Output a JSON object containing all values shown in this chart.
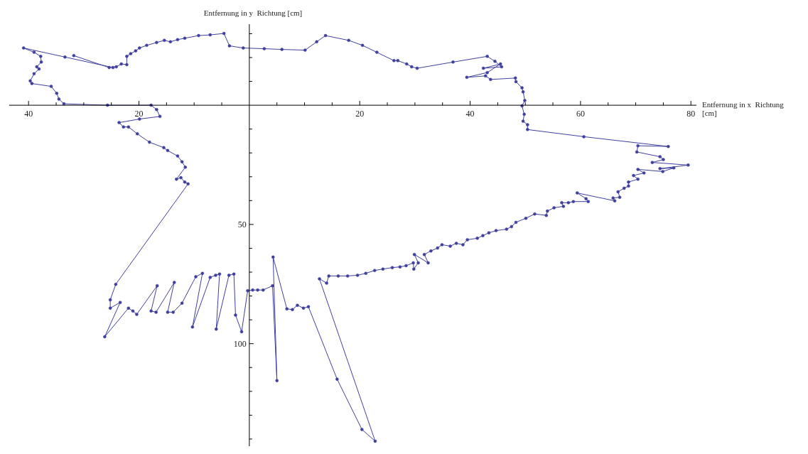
{
  "chart_data": {
    "type": "line",
    "xlabel": "Entfernung in x  Richtung [cm]",
    "ylabel": "Entfernung in y  Richtung [cm]",
    "color": "#3f3f9f",
    "marker": "circle",
    "line_style": "solid",
    "x": [
      -31.8,
      -25.4,
      -24.1,
      -23.2,
      -22.2,
      -22.2,
      -21.5,
      -20.6,
      -19.9,
      -18.6,
      -16.8,
      -15.4,
      -14.3,
      -13.0,
      -11.7,
      -9.2,
      -7.1,
      -4.6,
      -3.6,
      -1.1,
      2.7,
      5.9,
      10.1,
      12.2,
      13.8,
      18.0,
      20.5,
      23.1,
      26.2,
      26.9,
      28.5,
      29.4,
      30.4,
      36.9,
      43.1,
      44.5,
      45.7,
      42.4,
      45.5,
      43.1,
      39.4,
      42.8,
      43.7,
      48.2,
      48.3,
      49.4,
      49.6,
      49.9,
      49.4,
      49.8,
      49.6,
      50.4,
      50.4,
      60.6,
      75.9,
      70.4,
      70.2,
      74.4,
      75.0,
      73.0,
      79.5,
      74.4,
      76.9,
      74.9,
      70.4,
      71.5,
      69.6,
      70.4,
      68.7,
      68.7,
      67.9,
      66.8,
      67.1,
      65.9,
      66.2,
      59.4,
      61.0,
      61.4,
      58.7,
      57.8,
      56.6,
      56.9,
      55.2,
      54.0,
      53.8,
      51.7,
      50.1,
      48.3,
      47.5,
      46.6,
      44.7,
      43.4,
      42.3,
      41.3,
      39.5,
      38.7,
      37.5,
      36.4,
      34.9,
      34.1,
      32.9,
      31.7,
      32.4,
      29.9,
      30.6,
      29.8,
      29.7,
      28.4,
      27.3,
      25.9,
      24.2,
      22.7,
      21.1,
      19.6,
      17.8,
      16.1,
      14.4,
      14.0,
      12.7,
      22.8,
      20.4,
      15.9,
      10.7,
      9.8,
      8.7,
      7.8,
      6.8,
      4.3,
      5.0,
      4.2,
      2.5,
      1.5,
      0.6,
      -0.3,
      -1.4,
      -2.5,
      -2.8,
      -3.7,
      -6.0,
      -5.4,
      -6.1,
      -7.1,
      -10.3,
      -8.5,
      -9.7,
      -12.2,
      -13.8,
      -14.8,
      -13.6,
      -16.9,
      -17.8,
      -16.7,
      -20.4,
      -21.1,
      -21.9,
      -26.2,
      -23.4,
      -25.2,
      -25.2,
      -24.2,
      -11.1,
      -11.7,
      -12.4,
      -13.2,
      -11.6,
      -12.2,
      -13.0,
      -14.8,
      -15.5,
      -18.1,
      -20.3,
      -21.9,
      -22.8,
      -23.6,
      -19.9,
      -16.2,
      -16.8,
      -17.8,
      -25.7,
      -33.6,
      -34.5,
      -34.9,
      -35.9,
      -39.4,
      -39.7,
      -39.0,
      -38.1,
      -38.5,
      -37.7,
      -37.8,
      -39.0,
      -40.9,
      -33.4,
      -24.7
    ],
    "values": [
      -20.8,
      -15.8,
      -16.1,
      -17.3,
      -17.0,
      -20.5,
      -21.6,
      -22.8,
      -24.0,
      -25.1,
      -26.3,
      -27.2,
      -26.6,
      -27.5,
      -28.1,
      -29.2,
      -29.5,
      -30.1,
      -24.9,
      -24.0,
      -23.7,
      -23.4,
      -23.1,
      -26.6,
      -29.2,
      -27.2,
      -25.1,
      -22.2,
      -18.7,
      -18.7,
      -17.3,
      -16.1,
      -15.5,
      -18.1,
      -20.5,
      -18.4,
      -16.1,
      -15.5,
      -17.3,
      -13.7,
      -11.7,
      -12.3,
      -10.8,
      -11.4,
      -9.9,
      -7.3,
      -5.6,
      -2.0,
      0.3,
      3.8,
      6.7,
      8.2,
      10.2,
      13.2,
      17.3,
      17.0,
      19.6,
      21.6,
      22.8,
      24.0,
      25.1,
      26.6,
      26.3,
      27.8,
      26.9,
      28.4,
      29.5,
      31.0,
      32.2,
      33.9,
      34.8,
      36.3,
      38.6,
      38.9,
      40.1,
      36.8,
      39.2,
      40.4,
      40.4,
      40.9,
      40.9,
      42.4,
      43.0,
      44.4,
      46.2,
      45.6,
      47.4,
      49.1,
      50.9,
      52.0,
      52.6,
      53.5,
      54.7,
      55.8,
      56.4,
      58.5,
      57.9,
      59.1,
      58.5,
      59.9,
      61.1,
      62.6,
      66.1,
      62.6,
      66.1,
      68.7,
      66.1,
      67.3,
      67.8,
      68.1,
      68.7,
      69.3,
      70.5,
      71.3,
      71.6,
      71.6,
      71.6,
      74.6,
      72.8,
      140.9,
      136.0,
      114.9,
      84.5,
      85.1,
      83.9,
      85.7,
      85.4,
      63.7,
      115.5,
      75.7,
      77.5,
      77.5,
      77.5,
      77.8,
      95.0,
      88.0,
      70.8,
      71.3,
      93.9,
      70.8,
      71.3,
      72.2,
      93.0,
      70.5,
      71.9,
      83.0,
      86.8,
      86.8,
      74.3,
      86.8,
      86.3,
      75.7,
      87.7,
      86.3,
      85.1,
      97.1,
      82.7,
      85.1,
      81.6,
      75.1,
      33.0,
      32.2,
      30.4,
      31.0,
      26.0,
      23.7,
      21.3,
      19.0,
      17.8,
      15.5,
      12.0,
      9.1,
      9.1,
      7.3,
      5.8,
      4.7,
      1.8,
      0,
      0,
      -0.6,
      -2.6,
      -5.0,
      -7.9,
      -9.1,
      -10.2,
      -13.2,
      -15.2,
      -16.1,
      -18.1,
      -20.5,
      -22.2,
      -24.0,
      -20.2,
      -15.8
    ],
    "xlim": [
      -43.5,
      81
    ],
    "ylim": [
      143,
      -34
    ],
    "xticks": [
      {
        "value": -40,
        "label": "40"
      },
      {
        "value": -35,
        "label": null
      },
      {
        "value": -30,
        "label": null
      },
      {
        "value": -25,
        "label": null
      },
      {
        "value": -20,
        "label": "20"
      },
      {
        "value": -15,
        "label": null
      },
      {
        "value": -10,
        "label": null
      },
      {
        "value": -5,
        "label": null
      },
      {
        "value": 5,
        "label": null
      },
      {
        "value": 10,
        "label": null
      },
      {
        "value": 15,
        "label": null
      },
      20,
      {
        "value": 25,
        "label": null
      },
      {
        "value": 30,
        "label": null
      },
      {
        "value": 35,
        "label": null
      },
      40,
      {
        "value": 45,
        "label": null
      },
      {
        "value": 50,
        "label": null
      },
      {
        "value": 55,
        "label": null
      },
      60,
      {
        "value": 65,
        "label": null
      },
      {
        "value": 70,
        "label": null
      },
      {
        "value": 75,
        "label": null
      },
      80
    ],
    "yticks": [
      {
        "value": -30,
        "label": null
      },
      {
        "value": -20,
        "label": null
      },
      {
        "value": -10,
        "label": null
      },
      {
        "value": 10,
        "label": null
      },
      {
        "value": 20,
        "label": null
      },
      {
        "value": 30,
        "label": null
      },
      {
        "value": 40,
        "label": null
      },
      50,
      {
        "value": 60,
        "label": null
      },
      {
        "value": 70,
        "label": null
      },
      {
        "value": 80,
        "label": null
      },
      {
        "value": 90,
        "label": null
      },
      100,
      {
        "value": 110,
        "label": null
      },
      {
        "value": 120,
        "label": null
      },
      {
        "value": 130,
        "label": null
      },
      {
        "value": 140,
        "label": null
      }
    ]
  }
}
